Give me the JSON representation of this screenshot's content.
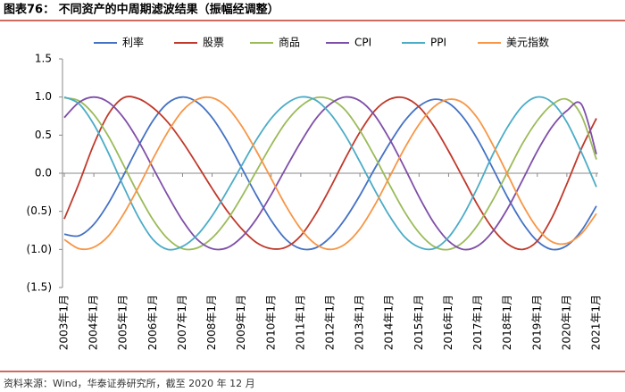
{
  "header": {
    "title": "图表76：  不同资产的中周期滤波结果（振幅经调整）"
  },
  "chart_data": {
    "type": "line",
    "legend": "top",
    "grid": false,
    "categories": [
      "2003年1月",
      null,
      "2004年1月",
      null,
      "2005年1月",
      null,
      "2006年1月",
      null,
      "2007年1月",
      null,
      "2008年1月",
      null,
      "2009年1月",
      null,
      "2010年1月",
      null,
      "2011年1月",
      null,
      "2012年1月",
      null,
      "2013年1月",
      null,
      "2014年1月",
      null,
      "2015年1月",
      null,
      "2016年1月",
      null,
      "2017年1月",
      null,
      "2018年1月",
      null,
      "2019年1月",
      null,
      "2020年1月",
      null,
      "2021年1月"
    ],
    "ylim": [
      -1.5,
      1.5
    ],
    "yticks": [
      1.5,
      {
        "value": 1,
        "label": "1.0"
      },
      0.5,
      {
        "value": 0,
        "label": "0.0"
      },
      {
        "value": -0.5,
        "label": "(0.5)"
      },
      {
        "value": -1,
        "label": "(1.0)"
      },
      {
        "value": -1.5,
        "label": "(1.5)"
      }
    ],
    "series": [
      {
        "name": "利率",
        "color": "#4472c4",
        "values": [
          -0.8,
          -0.82,
          -0.67,
          -0.39,
          -0.03,
          0.35,
          0.69,
          0.92,
          1.0,
          0.93,
          0.73,
          0.43,
          0.07,
          -0.29,
          -0.62,
          -0.87,
          -0.99,
          -0.98,
          -0.84,
          -0.6,
          -0.29,
          0.06,
          0.39,
          0.68,
          0.88,
          0.97,
          0.92,
          0.73,
          0.43,
          0.06,
          -0.32,
          -0.65,
          -0.89,
          -1.0,
          -0.95,
          -0.75,
          -0.43
        ]
      },
      {
        "name": "股票",
        "color": "#c0392b",
        "values": [
          -0.6,
          -0.13,
          0.38,
          0.78,
          0.99,
          0.98,
          0.86,
          0.67,
          0.41,
          0.11,
          -0.2,
          -0.49,
          -0.73,
          -0.91,
          -0.99,
          -0.97,
          -0.82,
          -0.54,
          -0.19,
          0.19,
          0.54,
          0.82,
          0.97,
          0.99,
          0.87,
          0.62,
          0.29,
          -0.07,
          -0.43,
          -0.73,
          -0.93,
          -1.0,
          -0.89,
          -0.58,
          -0.14,
          0.33,
          0.72
        ]
      },
      {
        "name": "商品",
        "color": "#9bbb59",
        "values": [
          0.99,
          0.95,
          0.77,
          0.48,
          0.11,
          -0.27,
          -0.61,
          -0.86,
          -0.99,
          -0.98,
          -0.85,
          -0.62,
          -0.31,
          0.03,
          0.37,
          0.67,
          0.88,
          0.99,
          0.97,
          0.83,
          0.56,
          0.22,
          -0.15,
          -0.5,
          -0.78,
          -0.96,
          -1.0,
          -0.9,
          -0.67,
          -0.35,
          0.02,
          0.39,
          0.69,
          0.9,
          0.97,
          0.75,
          0.18
        ]
      },
      {
        "name": "CPI",
        "color": "#7f4fa8",
        "values": [
          0.73,
          0.93,
          1.0,
          0.93,
          0.73,
          0.43,
          0.07,
          -0.29,
          -0.62,
          -0.87,
          -0.99,
          -0.98,
          -0.84,
          -0.6,
          -0.28,
          0.07,
          0.41,
          0.71,
          0.91,
          1.0,
          0.95,
          0.76,
          0.45,
          0.08,
          -0.31,
          -0.65,
          -0.89,
          -1.0,
          -0.95,
          -0.76,
          -0.46,
          -0.09,
          0.29,
          0.61,
          0.82,
          0.9,
          0.25
        ]
      },
      {
        "name": "PPI",
        "color": "#4bacc6",
        "values": [
          1.0,
          0.91,
          0.64,
          0.26,
          -0.17,
          -0.57,
          -0.87,
          -1.0,
          -0.96,
          -0.81,
          -0.56,
          -0.24,
          0.1,
          0.44,
          0.72,
          0.91,
          1.0,
          0.96,
          0.78,
          0.5,
          0.15,
          -0.22,
          -0.56,
          -0.83,
          -0.97,
          -0.99,
          -0.84,
          -0.55,
          -0.17,
          0.25,
          0.61,
          0.88,
          1.0,
          0.93,
          0.67,
          0.27,
          -0.18
        ]
      },
      {
        "name": "美元指数",
        "color": "#f79646",
        "values": [
          -0.87,
          -0.99,
          -0.97,
          -0.82,
          -0.54,
          -0.19,
          0.19,
          0.54,
          0.82,
          0.97,
          0.99,
          0.87,
          0.62,
          0.29,
          -0.07,
          -0.43,
          -0.73,
          -0.93,
          -1.0,
          -0.93,
          -0.73,
          -0.42,
          -0.05,
          0.32,
          0.64,
          0.87,
          0.97,
          0.92,
          0.71,
          0.37,
          -0.02,
          -0.41,
          -0.72,
          -0.9,
          -0.92,
          -0.79,
          -0.53
        ]
      }
    ]
  },
  "footer": {
    "source": "资料来源：Wind，华泰证券研究所，截至 2020 年 12 月"
  }
}
